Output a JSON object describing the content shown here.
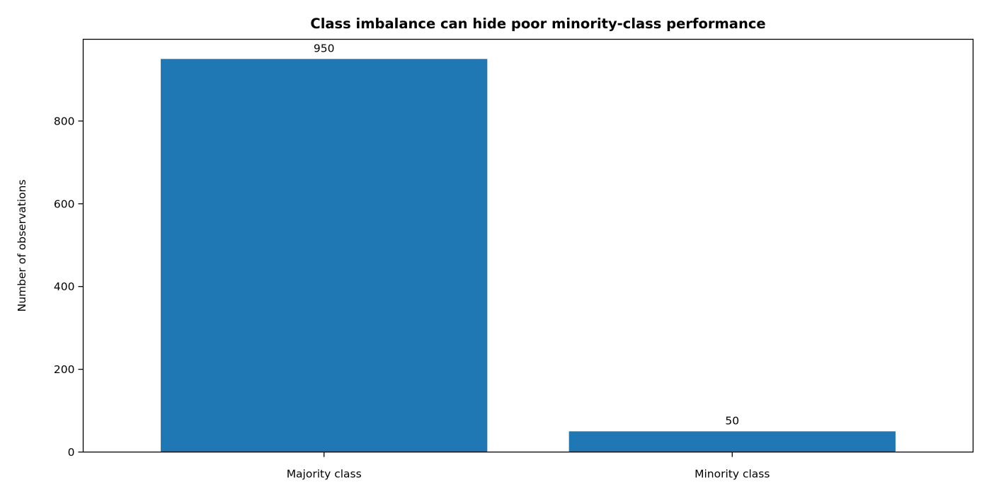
{
  "chart_data": {
    "type": "bar",
    "title": "Class imbalance can hide poor minority-class performance",
    "xlabel": "",
    "ylabel": "Number of observations",
    "categories": [
      "Majority class",
      "Minority class"
    ],
    "values": [
      950,
      50
    ],
    "data_labels": [
      "950",
      "50"
    ],
    "yticks": [
      0,
      200,
      400,
      600,
      800
    ],
    "ylim": [
      0,
      997.5
    ],
    "grid": false,
    "bar_color": "#1f77b4"
  }
}
